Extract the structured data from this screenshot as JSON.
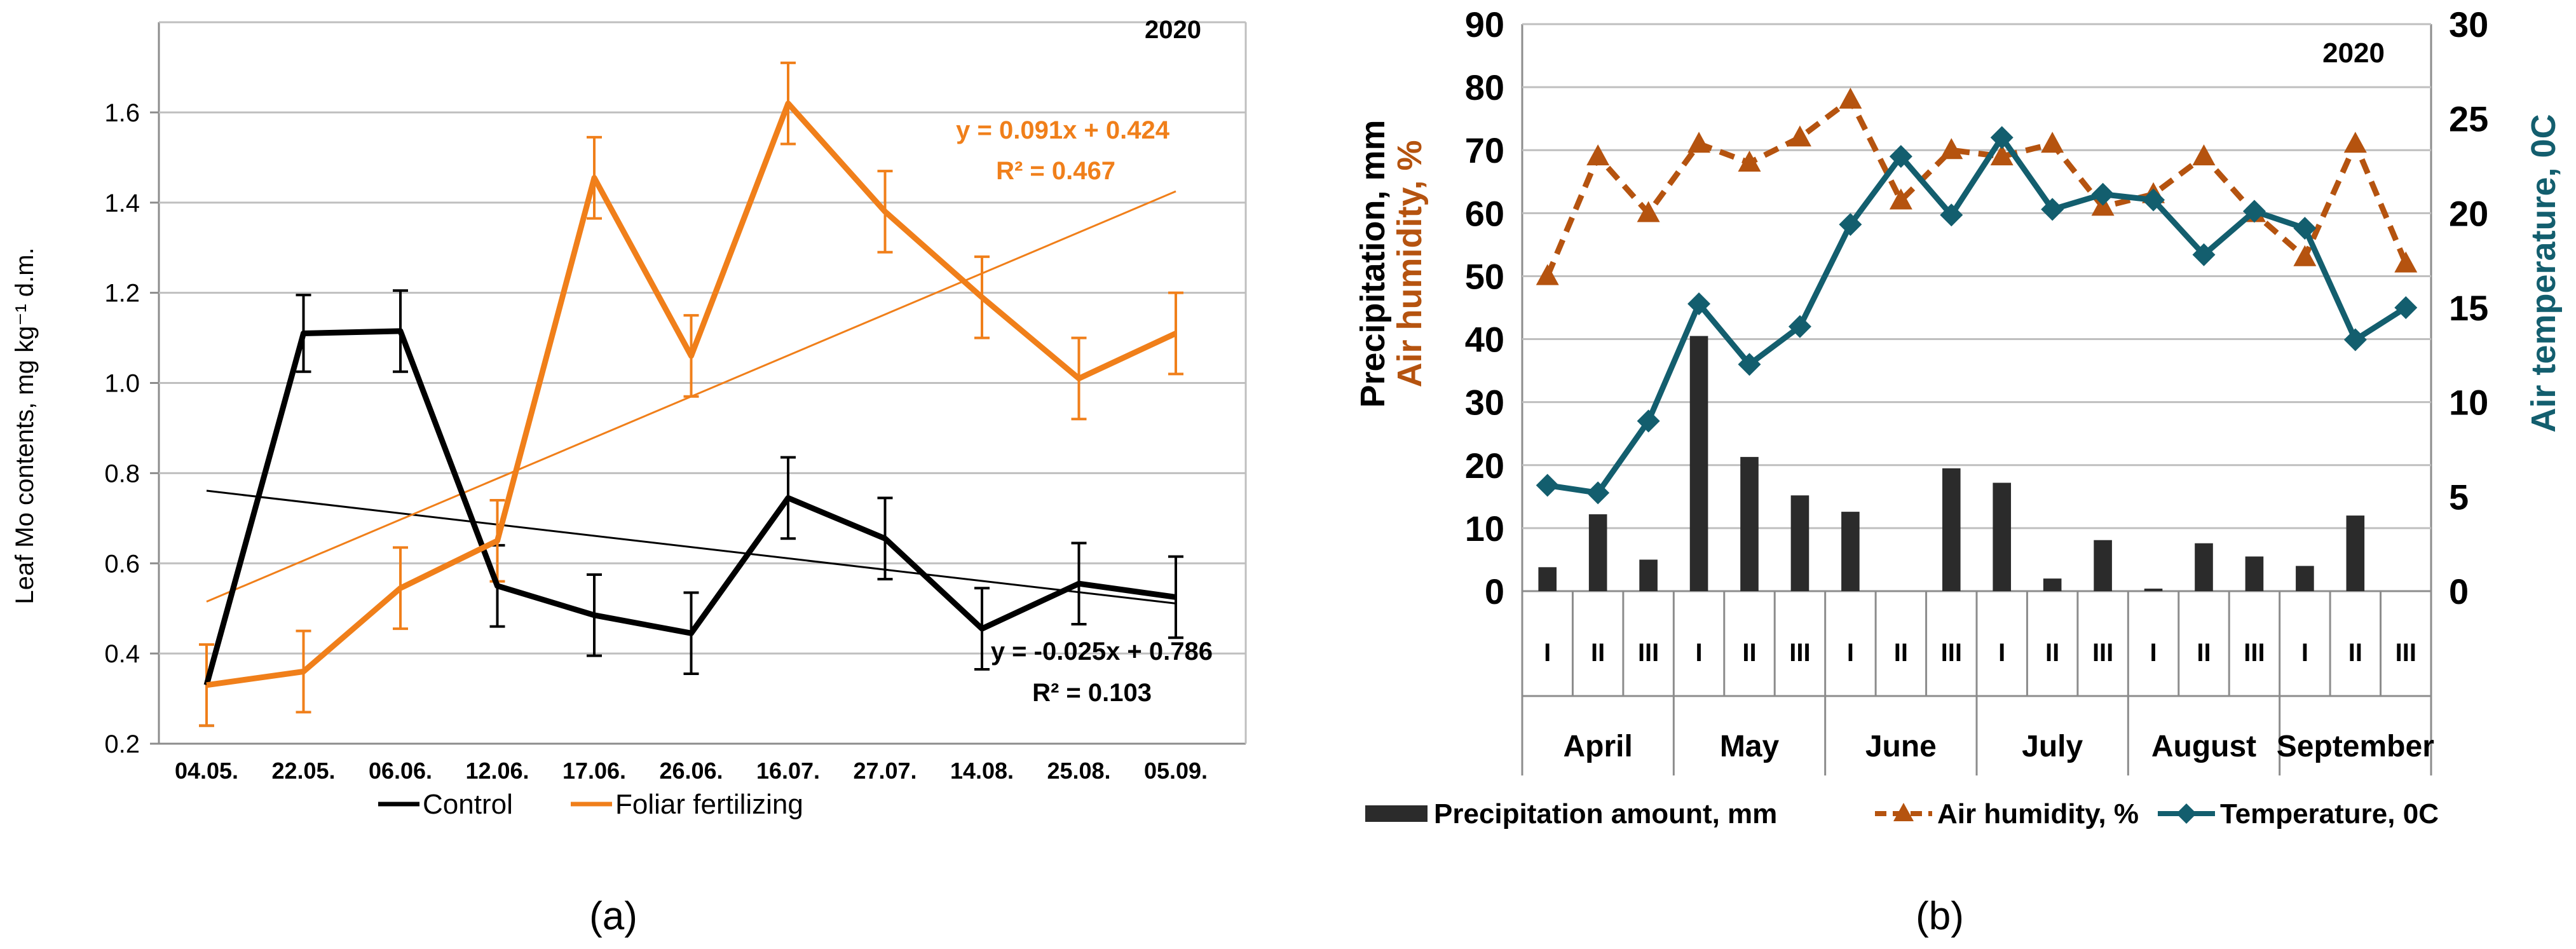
{
  "chart_data": [
    {
      "type": "line",
      "panel_label": "(a)",
      "title": "2020",
      "xlabel": "",
      "ylabel": "Leaf Mo contents, mg kg⁻¹ d.m.",
      "ylim": [
        0.2,
        1.8
      ],
      "y_ticks": [
        "0.2",
        "0.4",
        "0.6",
        "0.8",
        "1.0",
        "1.2",
        "1.4",
        "1.6"
      ],
      "grid": true,
      "legend": "bottom",
      "categories": [
        "04.05.",
        "22.05.",
        "06.06.",
        "12.06.",
        "17.06.",
        "26.06.",
        "16.07.",
        "27.07.",
        "14.08.",
        "25.08.",
        "05.09."
      ],
      "series": [
        {
          "name": "Control",
          "color": "#000000",
          "values": [
            0.33,
            1.11,
            1.115,
            0.55,
            0.485,
            0.445,
            0.745,
            0.655,
            0.455,
            0.555,
            0.525
          ],
          "error": [
            0.09,
            0.085,
            0.09,
            0.09,
            0.09,
            0.09,
            0.09,
            0.09,
            0.09,
            0.09,
            0.09
          ],
          "trendline": {
            "equation": "y = -0.025x + 0.786",
            "r2": "R² = 0.103",
            "slope": -0.025,
            "intercept": 0.786
          }
        },
        {
          "name": "Foliar fertilizing",
          "color": "#f07f1a",
          "values": [
            0.33,
            0.36,
            0.545,
            0.65,
            1.455,
            1.06,
            1.62,
            1.38,
            1.19,
            1.01,
            1.11
          ],
          "error": [
            0.09,
            0.09,
            0.09,
            0.09,
            0.09,
            0.09,
            0.09,
            0.09,
            0.09,
            0.09,
            0.09
          ],
          "trendline": {
            "equation": "y = 0.091x + 0.424",
            "r2": "R² = 0.467",
            "slope": 0.091,
            "intercept": 0.424
          }
        }
      ]
    },
    {
      "type": "bar",
      "panel_label": "(b)",
      "title": "2020",
      "ylabel_left_1": "Precipitation, mm",
      "ylabel_left_2": "Air humidity, %",
      "ylabel_right": "Air temperature, 0C",
      "ylim_left": [
        0,
        90
      ],
      "ylim_right": [
        0,
        30
      ],
      "y_ticks_left": [
        "0",
        "10",
        "20",
        "30",
        "40",
        "50",
        "60",
        "70",
        "80",
        "90"
      ],
      "y_ticks_right": [
        "0",
        "5",
        "10",
        "15",
        "20",
        "25",
        "30"
      ],
      "grid": true,
      "legend": "bottom",
      "decades": [
        "I",
        "II",
        "III",
        "I",
        "II",
        "III",
        "I",
        "II",
        "III",
        "I",
        "II",
        "III",
        "I",
        "II",
        "III",
        "I",
        "II",
        "III"
      ],
      "months": [
        "April",
        "May",
        "June",
        "July",
        "August",
        "September"
      ],
      "series": [
        {
          "name": "Precipitation amount, mm",
          "type": "bar",
          "axis": "left",
          "color": "#2b2b2b",
          "values": [
            3.8,
            12.2,
            5.0,
            40.5,
            21.3,
            15.2,
            12.6,
            0,
            19.5,
            17.2,
            2.0,
            8.1,
            0.4,
            7.6,
            5.5,
            4.0,
            12.0,
            0
          ]
        },
        {
          "name": "Air humidity, %",
          "type": "line",
          "axis": "left",
          "color": "#b5530f",
          "values": [
            50,
            69,
            60,
            71,
            68,
            72,
            78,
            62,
            70,
            69,
            71,
            61,
            63,
            69,
            60,
            53,
            71,
            52
          ]
        },
        {
          "name": "Temperature, 0C",
          "type": "line",
          "axis": "right",
          "color": "#135e6e",
          "values": [
            5.6,
            5.2,
            9.0,
            15.2,
            12.0,
            14.0,
            19.4,
            23.0,
            19.9,
            24.0,
            20.2,
            21.0,
            20.7,
            17.8,
            20.1,
            19.2,
            13.3,
            15.0
          ]
        }
      ]
    }
  ]
}
